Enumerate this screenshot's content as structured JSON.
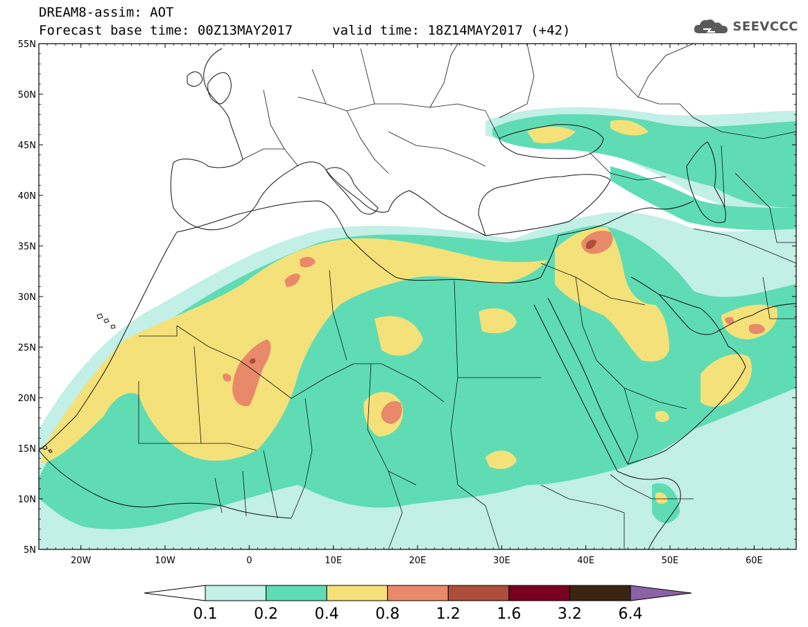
{
  "title": {
    "line1": "DREAM8-assim: AOT",
    "line2": "Forecast base time: 00Z13MAY2017     valid time: 18Z14MAY2017 (+42)"
  },
  "logo": {
    "text": "SEEVCCC",
    "icon": "cloud-logo-icon"
  },
  "map": {
    "lon_range": [
      -25,
      65
    ],
    "lat_range": [
      5,
      55
    ],
    "lat_labels": [
      "55N",
      "50N",
      "45N",
      "40N",
      "35N",
      "30N",
      "25N",
      "20N",
      "15N",
      "10N",
      "5N"
    ],
    "lon_labels": [
      "20W",
      "10W",
      "0",
      "10E",
      "20E",
      "30E",
      "40E",
      "50E",
      "60E"
    ],
    "variable": "AOT"
  },
  "colorbar": {
    "colors": [
      "#ffffff",
      "#c2efe6",
      "#5fdcb4",
      "#f5e17a",
      "#e8896a",
      "#ad4d3c",
      "#780021",
      "#3a2512",
      "#8a63a6"
    ],
    "ticks": [
      "0.1",
      "0.2",
      "0.4",
      "0.8",
      "1.2",
      "1.6",
      "3.2",
      "6.4"
    ]
  }
}
